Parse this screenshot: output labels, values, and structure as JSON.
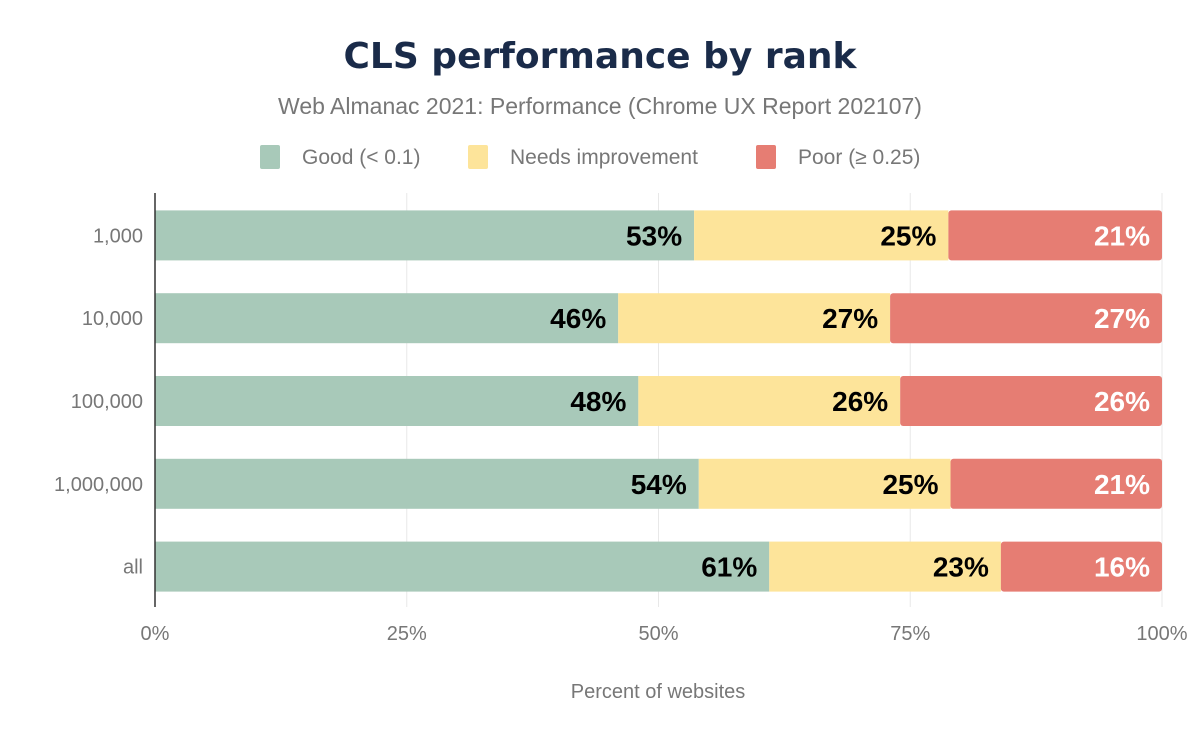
{
  "chart_data": {
    "type": "bar",
    "orientation": "horizontal",
    "stacked": true,
    "title": "CLS performance by rank",
    "subtitle": "Web Almanac 2021: Performance (Chrome UX Report 202107)",
    "xlabel": "Percent of websites",
    "ylabel": "",
    "xlim": [
      0,
      100
    ],
    "x_ticks": [
      "0%",
      "25%",
      "50%",
      "75%",
      "100%"
    ],
    "grid": true,
    "legend_placement": "top",
    "categories": [
      "1,000",
      "10,000",
      "100,000",
      "1,000,000",
      "all"
    ],
    "series": [
      {
        "name": "Good (< 0.1)",
        "color": "#a8c9b9",
        "label_color": "#000000",
        "values": [
          53,
          46,
          48,
          54,
          61
        ]
      },
      {
        "name": "Needs improvement",
        "color": "#fde49a",
        "label_color": "#000000",
        "values": [
          25,
          27,
          26,
          25,
          23
        ]
      },
      {
        "name": "Poor (≥ 0.25)",
        "color": "#e67d73",
        "label_color": "#ffffff",
        "values": [
          21,
          27,
          26,
          21,
          16
        ]
      }
    ]
  }
}
